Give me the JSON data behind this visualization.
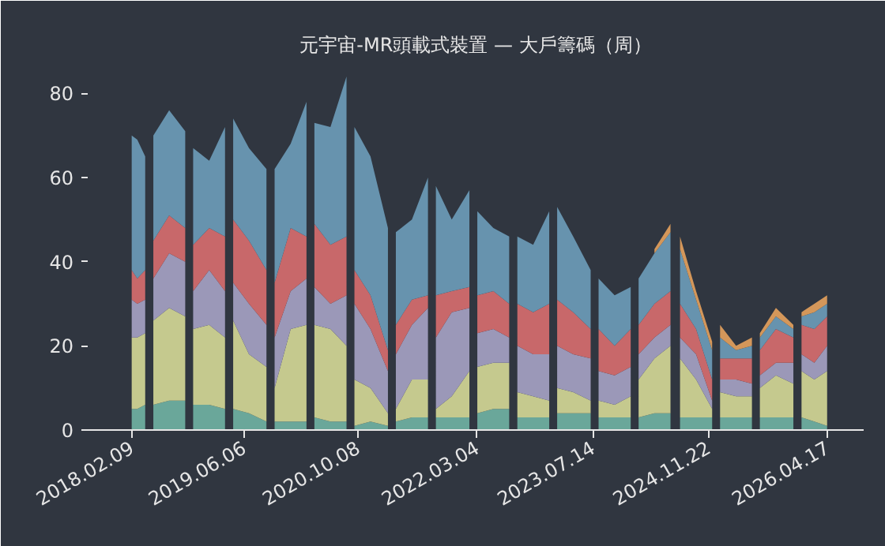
{
  "chart_data": {
    "type": "area",
    "stacked": true,
    "title": "元宇宙-MR頭載式裝置 — 大戶籌碼（周）",
    "x": [
      "2018-02-09",
      "2018-03-05",
      "2018-04-08",
      "2018-04-25",
      "2018-05-13",
      "2018-07-20",
      "2018-09-27",
      "2018-10-14",
      "2018-10-31",
      "2019-01-08",
      "2019-03-17",
      "2019-04-03",
      "2019-04-21",
      "2019-06-28",
      "2019-09-11",
      "2019-09-29",
      "2019-10-16",
      "2019-12-24",
      "2020-03-01",
      "2020-03-18",
      "2020-04-04",
      "2020-06-12",
      "2020-08-20",
      "2020-09-06",
      "2020-09-23",
      "2020-12-01",
      "2021-02-14",
      "2021-03-03",
      "2021-03-20",
      "2021-05-28",
      "2021-08-05",
      "2021-08-22",
      "2021-09-08",
      "2021-11-15",
      "2022-01-30",
      "2022-02-16",
      "2022-03-05",
      "2022-05-13",
      "2022-07-20",
      "2022-08-07",
      "2022-08-24",
      "2022-10-31",
      "2023-01-08",
      "2023-01-25",
      "2023-02-11",
      "2023-04-21",
      "2023-07-05",
      "2023-07-22",
      "2023-08-08",
      "2023-10-16",
      "2023-12-24",
      "2024-01-10",
      "2024-01-27",
      "2024-04-04",
      "2024-06-12",
      "2024-07-03",
      "2024-07-23",
      "2024-09-30",
      "2024-12-08",
      "2024-12-25",
      "2025-01-11",
      "2025-03-21",
      "2025-05-28",
      "2025-06-14",
      "2025-07-01",
      "2025-09-08",
      "2025-11-22",
      "2025-12-10",
      "2025-12-27",
      "2026-02-20",
      "2026-04-16"
    ],
    "series": [
      {
        "color": "#6aa79a",
        "values": [
          5,
          5,
          6,
          null,
          6,
          7,
          7,
          null,
          6,
          6,
          5,
          null,
          5,
          4,
          2,
          null,
          2,
          2,
          2,
          null,
          3,
          2,
          2,
          null,
          1,
          2,
          1,
          null,
          2,
          3,
          3,
          null,
          3,
          3,
          3,
          null,
          4,
          5,
          5,
          null,
          3,
          3,
          3,
          null,
          4,
          4,
          4,
          null,
          3,
          3,
          3,
          null,
          3,
          4,
          4,
          null,
          3,
          3,
          3,
          null,
          3,
          3,
          3,
          null,
          3,
          3,
          3,
          null,
          3,
          2,
          1
        ]
      },
      {
        "color": "#c5c98e",
        "values": [
          17,
          17,
          17,
          null,
          20,
          22,
          20,
          null,
          18,
          19,
          17,
          null,
          21,
          14,
          13,
          null,
          8,
          22,
          23,
          null,
          22,
          22,
          18,
          null,
          11,
          8,
          3,
          null,
          3,
          9,
          9,
          null,
          2,
          5,
          11,
          null,
          11,
          11,
          11,
          null,
          6,
          5,
          4,
          null,
          6,
          5,
          3,
          null,
          4,
          3,
          5,
          null,
          9,
          13,
          16,
          null,
          14,
          9,
          2,
          null,
          6,
          5,
          5,
          null,
          7,
          10,
          8,
          null,
          11,
          10,
          13
        ]
      },
      {
        "color": "#9b98b8",
        "values": [
          9,
          8,
          8,
          null,
          10,
          13,
          13,
          null,
          9,
          13,
          11,
          null,
          9,
          12,
          10,
          null,
          12,
          9,
          11,
          null,
          9,
          6,
          12,
          null,
          18,
          14,
          10,
          null,
          13,
          13,
          17,
          null,
          17,
          20,
          15,
          null,
          8,
          8,
          6,
          null,
          11,
          10,
          11,
          null,
          10,
          9,
          10,
          null,
          7,
          7,
          7,
          null,
          6,
          5,
          5,
          null,
          5,
          6,
          2,
          null,
          3,
          4,
          3,
          null,
          3,
          3,
          5,
          null,
          4,
          4,
          6
        ]
      },
      {
        "color": "#c8686a",
        "values": [
          7,
          6,
          7,
          null,
          9,
          9,
          8,
          null,
          11,
          10,
          13,
          null,
          15,
          15,
          13,
          null,
          13,
          15,
          10,
          null,
          15,
          14,
          14,
          null,
          8,
          8,
          5,
          null,
          7,
          6,
          3,
          null,
          10,
          5,
          5,
          null,
          9,
          9,
          8,
          null,
          10,
          10,
          12,
          null,
          11,
          10,
          7,
          null,
          10,
          7,
          9,
          null,
          7,
          8,
          8,
          null,
          8,
          6,
          5,
          null,
          5,
          5,
          6,
          null,
          6,
          8,
          6,
          null,
          7,
          8,
          7
        ]
      },
      {
        "color": "#6793ae",
        "values": [
          32,
          33,
          27,
          null,
          25,
          25,
          23,
          null,
          23,
          16,
          26,
          null,
          24,
          22,
          24,
          null,
          27,
          20,
          32,
          null,
          24,
          28,
          38,
          null,
          34,
          33,
          29,
          null,
          22,
          19,
          28,
          null,
          26,
          17,
          23,
          null,
          20,
          15,
          16,
          null,
          16,
          16,
          22,
          null,
          22,
          18,
          14,
          null,
          12,
          12,
          10,
          null,
          11,
          12,
          14,
          null,
          13,
          7,
          7,
          null,
          5,
          2,
          3,
          null,
          3,
          3,
          2,
          null,
          2,
          4,
          3
        ]
      },
      {
        "color": "#d4975a",
        "values": [
          null,
          null,
          null,
          null,
          null,
          null,
          null,
          null,
          null,
          null,
          null,
          null,
          null,
          null,
          null,
          null,
          null,
          null,
          null,
          null,
          null,
          null,
          null,
          null,
          null,
          null,
          null,
          null,
          null,
          null,
          null,
          null,
          null,
          null,
          null,
          null,
          null,
          null,
          null,
          null,
          null,
          null,
          null,
          null,
          null,
          null,
          null,
          null,
          null,
          null,
          null,
          null,
          null,
          1,
          2,
          null,
          3,
          2,
          2,
          null,
          3,
          1,
          2,
          null,
          1,
          2,
          1,
          null,
          1,
          2,
          2
        ]
      }
    ],
    "xlim": [
      "2017-08-04",
      "2026-09-20"
    ],
    "xticks": [
      {
        "value": "2018-02-09",
        "label": "2018.02.09"
      },
      {
        "value": "2019-06-06",
        "label": "2019.06.06"
      },
      {
        "value": "2020-10-08",
        "label": "2020.10.08"
      },
      {
        "value": "2022-03-04",
        "label": "2022.03.04"
      },
      {
        "value": "2023-07-14",
        "label": "2023.07.14"
      },
      {
        "value": "2024-11-22",
        "label": "2024.11.22"
      },
      {
        "value": "2026-04-17",
        "label": "2026.04.17"
      }
    ],
    "ylim": [
      0,
      87
    ],
    "yticks": [
      0,
      20,
      40,
      60,
      80
    ],
    "grid": false
  }
}
